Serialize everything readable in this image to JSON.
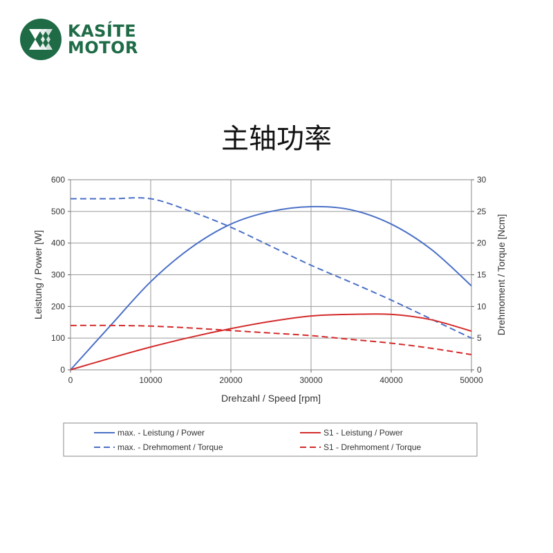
{
  "brand": {
    "line1": "KASÍTE",
    "line2": "MOTOR",
    "color": "#1e6b46"
  },
  "page_title": "主轴功率",
  "chart_data": {
    "type": "line",
    "title": "",
    "xlabel": "Drehzahl / Speed [rpm]",
    "ylabel_left": "Leistung / Power [W]",
    "ylabel_right": "Drehmoment / Torque [Ncm]",
    "xlim": [
      0,
      50000
    ],
    "ylim_left": [
      0,
      600
    ],
    "ylim_right": [
      0,
      30
    ],
    "x_ticks": [
      0,
      10000,
      20000,
      30000,
      40000,
      50000
    ],
    "y_ticks_left": [
      0,
      100,
      200,
      300,
      400,
      500,
      600
    ],
    "y_ticks_right": [
      0,
      5,
      10,
      15,
      20,
      25,
      30
    ],
    "grid": true,
    "legend_position": "bottom",
    "x": [
      0,
      5000,
      10000,
      15000,
      20000,
      25000,
      30000,
      35000,
      40000,
      45000,
      50000
    ],
    "series": [
      {
        "name": "max. - Leistung / Power",
        "axis": "left",
        "style": "solid",
        "color": "#4a6fc7",
        "values": [
          0,
          140,
          278,
          385,
          460,
          500,
          515,
          505,
          460,
          380,
          265
        ]
      },
      {
        "name": "max. - Drehmoment / Torque",
        "axis": "right",
        "style": "dashed",
        "color": "#4a6fc7",
        "values": [
          27,
          27,
          27,
          25,
          22.5,
          19.5,
          16.5,
          13.8,
          11,
          8,
          5
        ]
      },
      {
        "name": "S1 - Leistung / Power",
        "axis": "left",
        "style": "solid",
        "color": "#d42a2a",
        "values": [
          0,
          37,
          72,
          103,
          130,
          153,
          170,
          175,
          175,
          158,
          122
        ]
      },
      {
        "name": "S1 - Drehmoment / Torque",
        "axis": "right",
        "style": "dashed",
        "color": "#d42a2a",
        "values": [
          7,
          7,
          6.9,
          6.6,
          6.2,
          5.8,
          5.4,
          4.8,
          4.2,
          3.4,
          2.4
        ]
      }
    ]
  }
}
